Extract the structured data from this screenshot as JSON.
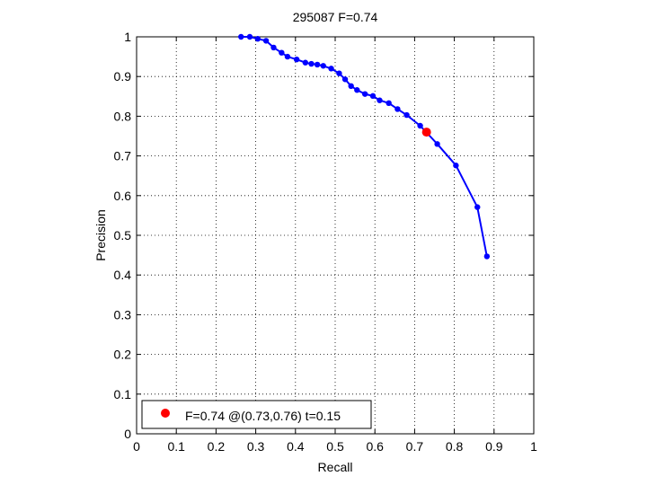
{
  "chart_data": {
    "type": "line",
    "title": "295087 F=0.74",
    "xlabel": "Recall",
    "ylabel": "Precision",
    "xlim": [
      0,
      1
    ],
    "ylim": [
      0,
      1
    ],
    "xticks": [
      "0",
      "0.1",
      "0.2",
      "0.3",
      "0.4",
      "0.5",
      "0.6",
      "0.7",
      "0.8",
      "0.9",
      "1"
    ],
    "yticks": [
      "0",
      "0.1",
      "0.2",
      "0.3",
      "0.4",
      "0.5",
      "0.6",
      "0.7",
      "0.8",
      "0.9",
      "1"
    ],
    "grid": true,
    "legend_position": "bottom-left",
    "series": [
      {
        "color": "#0000ff",
        "points": [
          [
            0.263,
            1.0
          ],
          [
            0.285,
            1.0
          ],
          [
            0.305,
            0.995
          ],
          [
            0.326,
            0.99
          ],
          [
            0.345,
            0.973
          ],
          [
            0.365,
            0.96
          ],
          [
            0.38,
            0.95
          ],
          [
            0.403,
            0.943
          ],
          [
            0.425,
            0.935
          ],
          [
            0.44,
            0.932
          ],
          [
            0.455,
            0.93
          ],
          [
            0.47,
            0.927
          ],
          [
            0.49,
            0.92
          ],
          [
            0.51,
            0.908
          ],
          [
            0.525,
            0.893
          ],
          [
            0.54,
            0.876
          ],
          [
            0.555,
            0.866
          ],
          [
            0.575,
            0.856
          ],
          [
            0.595,
            0.851
          ],
          [
            0.612,
            0.84
          ],
          [
            0.635,
            0.833
          ],
          [
            0.657,
            0.818
          ],
          [
            0.68,
            0.803
          ],
          [
            0.714,
            0.776
          ],
          [
            0.757,
            0.73
          ],
          [
            0.804,
            0.676
          ],
          [
            0.858,
            0.571
          ],
          [
            0.882,
            0.447
          ]
        ]
      }
    ],
    "highlight": {
      "x": 0.73,
      "y": 0.76,
      "color": "#ff0000"
    },
    "legend": {
      "text": "F=0.74 @(0.73,0.76) t=0.15"
    }
  }
}
